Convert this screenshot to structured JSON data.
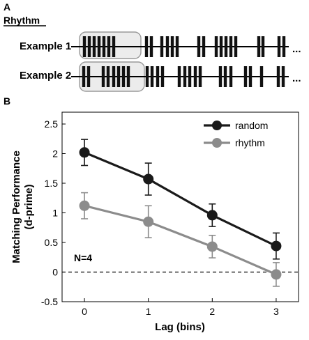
{
  "panel_a": {
    "label": "A",
    "title": "Rhythm",
    "ellipsis": "...",
    "examples": [
      {
        "label": "Example 1"
      },
      {
        "label": "Example 2"
      }
    ]
  },
  "panel_b": {
    "label": "B",
    "annotation": "N=4"
  },
  "colors": {
    "random": "#1a1a1a",
    "rhythm": "#8c8c8c",
    "highlight_box": "#ececec",
    "highlight_border": "#9a9a9a"
  },
  "chart_data": {
    "type": "line",
    "x": [
      0,
      1,
      2,
      3
    ],
    "xticks": [
      "0",
      "1",
      "2",
      "3"
    ],
    "yticks": [
      "-0.5",
      "0",
      "0.5",
      "1",
      "1.5",
      "2",
      "2.5"
    ],
    "xlabel": "Lag (bins)",
    "ylabel_line1": "Matching Performance",
    "ylabel_line2": "(d-prime)",
    "xlim": [
      -0.35,
      3.35
    ],
    "ylim": [
      -0.5,
      2.7
    ],
    "zero_line": "dashed",
    "legend_position": "top-right",
    "series": [
      {
        "name": "random",
        "values": [
          2.02,
          1.57,
          0.96,
          0.44
        ],
        "err": [
          0.22,
          0.27,
          0.19,
          0.22
        ]
      },
      {
        "name": "rhythm",
        "values": [
          1.12,
          0.85,
          0.43,
          -0.04
        ],
        "err": [
          0.22,
          0.27,
          0.19,
          0.2
        ]
      }
    ]
  }
}
